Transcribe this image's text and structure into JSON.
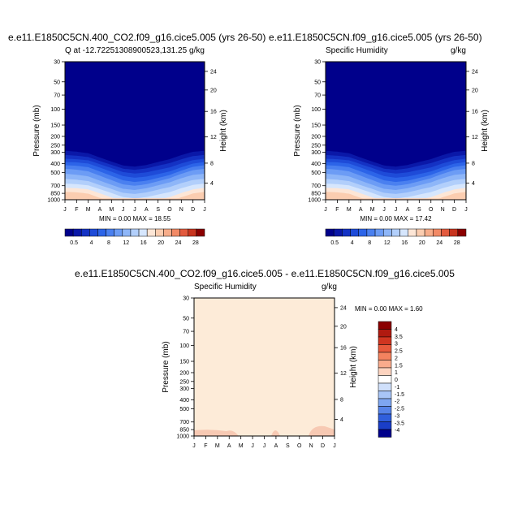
{
  "chart_data": [
    {
      "type": "area",
      "title": "e.e11.E1850C5CN.400_CO2.f09_g16.cice5.005 (yrs 26-50)",
      "subtitle_left": "Q at -12.72251308900523,131.25",
      "subtitle_right": "g/kg",
      "ylabel": "Pressure (mb)",
      "ylabel_right": "Height (km)",
      "x_ticks": [
        "J",
        "F",
        "M",
        "A",
        "M",
        "J",
        "J",
        "A",
        "S",
        "O",
        "N",
        "D",
        "J"
      ],
      "y_ticks": [
        "30",
        "50",
        "70",
        "100",
        "150",
        "200",
        "250",
        "300",
        "400",
        "500",
        "700",
        "850",
        "1000"
      ],
      "y_right_ticks": [
        "24",
        "20",
        "16",
        "12",
        "8",
        "4"
      ],
      "minmax": "MIN =   0.00 MAX =  18.55",
      "colorbar_labels": [
        "0.5",
        "4",
        "8",
        "12",
        "16",
        "20",
        "24",
        "28"
      ]
    },
    {
      "type": "area",
      "title": "e.e11.E1850C5CN.f09_g16.cice5.005 (yrs 26-50)",
      "subtitle_left": "Specific Humidity",
      "subtitle_right": "g/kg",
      "ylabel": "Pressure (mb)",
      "ylabel_right": "Height (km)",
      "x_ticks": [
        "J",
        "F",
        "M",
        "A",
        "M",
        "J",
        "J",
        "A",
        "S",
        "O",
        "N",
        "D",
        "J"
      ],
      "y_ticks": [
        "30",
        "50",
        "70",
        "100",
        "150",
        "200",
        "250",
        "300",
        "400",
        "500",
        "700",
        "850",
        "1000"
      ],
      "y_right_ticks": [
        "24",
        "20",
        "16",
        "12",
        "8",
        "4"
      ],
      "minmax": "MIN =   0.00 MAX =  17.42",
      "colorbar_labels": [
        "0.5",
        "4",
        "8",
        "12",
        "16",
        "20",
        "24",
        "28"
      ]
    },
    {
      "type": "area",
      "title": "e.e11.E1850C5CN.400_CO2.f09_g16.cice5.005 - e.e11.E1850C5CN.f09_g16.cice5.005",
      "subtitle_left": "Specific Humidity",
      "subtitle_right": "g/kg",
      "ylabel": "Pressure (mb)",
      "ylabel_right": "Height (km)",
      "x_ticks": [
        "J",
        "F",
        "M",
        "A",
        "M",
        "J",
        "J",
        "A",
        "S",
        "O",
        "N",
        "D",
        "J"
      ],
      "y_ticks": [
        "30",
        "50",
        "70",
        "100",
        "150",
        "200",
        "250",
        "300",
        "400",
        "500",
        "700",
        "850",
        "1000"
      ],
      "y_right_ticks": [
        "24",
        "20",
        "16",
        "12",
        "8",
        "4"
      ],
      "minmax": "MIN =   0.00 MAX =   1.60",
      "colorbar_labels": [
        "4",
        "3.5",
        "3",
        "2.5",
        "2",
        "1.5",
        "1",
        "0",
        "-1",
        "-1.5",
        "-2",
        "-2.5",
        "-3",
        "-3.5",
        "-4"
      ]
    }
  ],
  "colors": {
    "seq": [
      "#00008b",
      "#0a18a8",
      "#1432c4",
      "#1e4bd8",
      "#2c64e8",
      "#4a80f0",
      "#6c9cf5",
      "#8eb6f8",
      "#b2cffb",
      "#d6e6fd",
      "#fde6d6",
      "#fbcdb0",
      "#f7ad8a",
      "#f28a66",
      "#e35a3e",
      "#c8341e",
      "#8b0000"
    ],
    "div": [
      "#8b0000",
      "#b01a10",
      "#d03520",
      "#e85a3c",
      "#f4835f",
      "#f9ab8c",
      "#fcd3bf",
      "#ffffff",
      "#d0e0fb",
      "#a8c5f7",
      "#7ea6f1",
      "#5683e8",
      "#305fdc",
      "#1a3ec8",
      "#00008b"
    ],
    "diff_fill": "#fdebd8",
    "diff_feature": "#f7c9b3"
  }
}
